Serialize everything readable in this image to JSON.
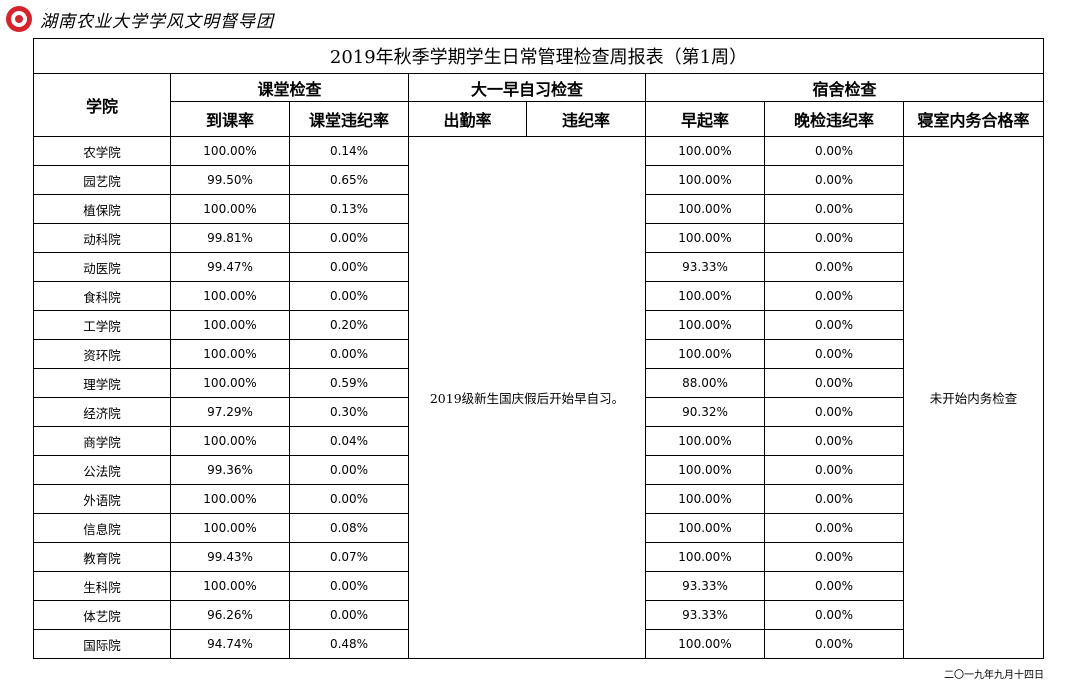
{
  "header": {
    "brand_text": "湖南农业大学学风文明督导团"
  },
  "report": {
    "title": "2019年秋季学期学生日常管理检查周报表（第1周）",
    "college_header": "学院",
    "groups": {
      "classroom": "课堂检查",
      "freshman": "大一早自习检查",
      "dorm": "宿舍检查"
    },
    "columns": {
      "attendance_rate": "到课率",
      "class_violation_rate": "课堂违纪率",
      "morning_attendance": "出勤率",
      "morning_violation": "违纪率",
      "early_rise_rate": "早起率",
      "evening_violation_rate": "晚检违纪率",
      "dorm_pass_rate": "寝室内务合格率"
    },
    "freshman_note": "2019级新生国庆假后开始早自习。",
    "dorm_note": "未开始内务检查",
    "rows": [
      {
        "college": "农学院",
        "attendance": "100.00%",
        "class_violation": "0.14%",
        "early_rise": "100.00%",
        "evening_violation": "0.00%"
      },
      {
        "college": "园艺院",
        "attendance": "99.50%",
        "class_violation": "0.65%",
        "early_rise": "100.00%",
        "evening_violation": "0.00%"
      },
      {
        "college": "植保院",
        "attendance": "100.00%",
        "class_violation": "0.13%",
        "early_rise": "100.00%",
        "evening_violation": "0.00%"
      },
      {
        "college": "动科院",
        "attendance": "99.81%",
        "class_violation": "0.00%",
        "early_rise": "100.00%",
        "evening_violation": "0.00%"
      },
      {
        "college": "动医院",
        "attendance": "99.47%",
        "class_violation": "0.00%",
        "early_rise": "93.33%",
        "evening_violation": "0.00%"
      },
      {
        "college": "食科院",
        "attendance": "100.00%",
        "class_violation": "0.00%",
        "early_rise": "100.00%",
        "evening_violation": "0.00%"
      },
      {
        "college": "工学院",
        "attendance": "100.00%",
        "class_violation": "0.20%",
        "early_rise": "100.00%",
        "evening_violation": "0.00%"
      },
      {
        "college": "资环院",
        "attendance": "100.00%",
        "class_violation": "0.00%",
        "early_rise": "100.00%",
        "evening_violation": "0.00%"
      },
      {
        "college": "理学院",
        "attendance": "100.00%",
        "class_violation": "0.59%",
        "early_rise": "88.00%",
        "evening_violation": "0.00%"
      },
      {
        "college": "经济院",
        "attendance": "97.29%",
        "class_violation": "0.30%",
        "early_rise": "90.32%",
        "evening_violation": "0.00%"
      },
      {
        "college": "商学院",
        "attendance": "100.00%",
        "class_violation": "0.04%",
        "early_rise": "100.00%",
        "evening_violation": "0.00%"
      },
      {
        "college": "公法院",
        "attendance": "99.36%",
        "class_violation": "0.00%",
        "early_rise": "100.00%",
        "evening_violation": "0.00%"
      },
      {
        "college": "外语院",
        "attendance": "100.00%",
        "class_violation": "0.00%",
        "early_rise": "100.00%",
        "evening_violation": "0.00%"
      },
      {
        "college": "信息院",
        "attendance": "100.00%",
        "class_violation": "0.08%",
        "early_rise": "100.00%",
        "evening_violation": "0.00%"
      },
      {
        "college": "教育院",
        "attendance": "99.43%",
        "class_violation": "0.07%",
        "early_rise": "100.00%",
        "evening_violation": "0.00%"
      },
      {
        "college": "生科院",
        "attendance": "100.00%",
        "class_violation": "0.00%",
        "early_rise": "93.33%",
        "evening_violation": "0.00%"
      },
      {
        "college": "体艺院",
        "attendance": "96.26%",
        "class_violation": "0.00%",
        "early_rise": "93.33%",
        "evening_violation": "0.00%"
      },
      {
        "college": "国际院",
        "attendance": "94.74%",
        "class_violation": "0.48%",
        "early_rise": "100.00%",
        "evening_violation": "0.00%"
      }
    ]
  },
  "footer": {
    "date": "二〇一九年九月十四日"
  }
}
